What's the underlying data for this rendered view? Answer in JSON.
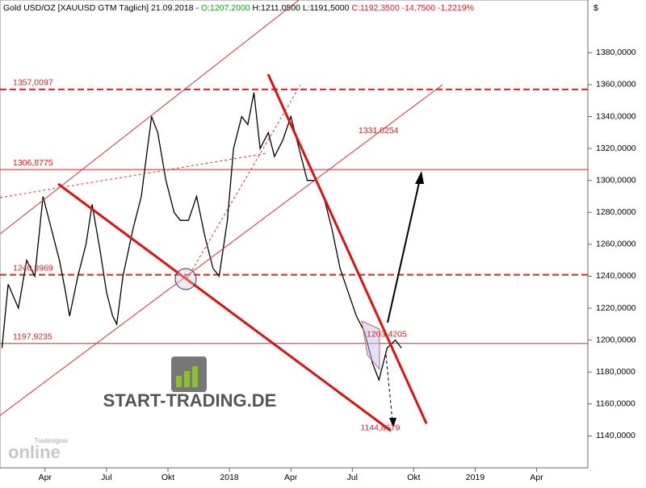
{
  "chart_data": {
    "type": "line",
    "header": [
      "Gold USD/OZ [XAUUSD GTM  Täglich] 21.09.2018 - ",
      "O:1207,2000",
      " H:1211,0500 L:1191,5000 ",
      "C:1192,3500 -14,7500 -1,2219%"
    ],
    "currency": "$",
    "watermark": "START-TRADING.DE",
    "logo": "online",
    "logo_sub": "Tradesignal",
    "xlim": [
      0.8,
      29.5
    ],
    "ylim": [
      1120,
      1413
    ],
    "yticks": [
      {
        "value": 1140,
        "label": "1140,0000"
      },
      {
        "value": 1160,
        "label": "1160,0000"
      },
      {
        "value": 1180,
        "label": "1180,0000"
      },
      {
        "value": 1200,
        "label": "1200,0000"
      },
      {
        "value": 1220,
        "label": "1220,0000"
      },
      {
        "value": 1240,
        "label": "1240,0000"
      },
      {
        "value": 1260,
        "label": "1260,0000"
      },
      {
        "value": 1280,
        "label": "1280,0000"
      },
      {
        "value": 1300,
        "label": "1300,0000"
      },
      {
        "value": 1320,
        "label": "1320,0000"
      },
      {
        "value": 1340,
        "label": "1340,0000"
      },
      {
        "value": 1360,
        "label": "1360,0000"
      },
      {
        "value": 1380,
        "label": "1380,0000"
      }
    ],
    "xticks": [
      {
        "value": 3,
        "label": "Apr"
      },
      {
        "value": 6,
        "label": "Jul"
      },
      {
        "value": 9,
        "label": "Okt"
      },
      {
        "value": 12,
        "label": "2018"
      },
      {
        "value": 15,
        "label": "Apr"
      },
      {
        "value": 18,
        "label": "Jul"
      },
      {
        "value": 21,
        "label": "Okt"
      },
      {
        "value": 24,
        "label": "2019"
      },
      {
        "value": 27,
        "label": "Apr"
      }
    ],
    "series": [
      {
        "name": "Gold USD/OZ",
        "color": "#000000",
        "x": [
          0.9,
          1.2,
          1.7,
          2.1,
          2.5,
          2.9,
          3.3,
          3.7,
          4.0,
          4.2,
          4.6,
          5.0,
          5.3,
          5.7,
          6.0,
          6.3,
          6.5,
          6.8,
          7.3,
          7.7,
          8.0,
          8.2,
          8.5,
          8.9,
          9.3,
          9.6,
          10.0,
          10.4,
          10.8,
          11.2,
          11.5,
          11.9,
          12.2,
          12.6,
          12.9,
          13.2,
          13.5,
          13.9,
          14.2,
          14.6,
          15.0,
          15.4,
          15.8,
          16.2,
          16.6,
          17.0,
          17.4,
          17.8,
          18.2,
          18.6,
          19.0,
          19.3,
          19.7,
          20.1,
          20.4
        ],
        "values": [
          1195,
          1235,
          1220,
          1250,
          1240,
          1290,
          1270,
          1250,
          1230,
          1215,
          1240,
          1260,
          1285,
          1255,
          1230,
          1215,
          1210,
          1240,
          1270,
          1290,
          1320,
          1340,
          1330,
          1300,
          1280,
          1275,
          1275,
          1290,
          1265,
          1245,
          1240,
          1275,
          1320,
          1340,
          1335,
          1355,
          1320,
          1330,
          1315,
          1325,
          1340,
          1320,
          1300,
          1300,
          1290,
          1270,
          1245,
          1230,
          1215,
          1205,
          1185,
          1175,
          1195,
          1200,
          1195
        ]
      }
    ],
    "levels": [
      {
        "value": 1357.0097,
        "label": "1357,0097",
        "style": "dashed"
      },
      {
        "value": 1306.8775,
        "label": "1306,8775",
        "style": "solid"
      },
      {
        "value": 1240.8969,
        "label": "1240,8969",
        "style": "dashed"
      },
      {
        "value": 1197.9235,
        "label": "1197,9235",
        "style": "solid"
      }
    ],
    "annotations": [
      {
        "value": 1331.0254,
        "label": "1331,0254",
        "x": 18.3
      },
      {
        "value": 1203.4205,
        "label": "1203,4205",
        "x": 18.7
      },
      {
        "value": 1144.8679,
        "label": "1144,8679",
        "x": 18.4
      }
    ]
  }
}
